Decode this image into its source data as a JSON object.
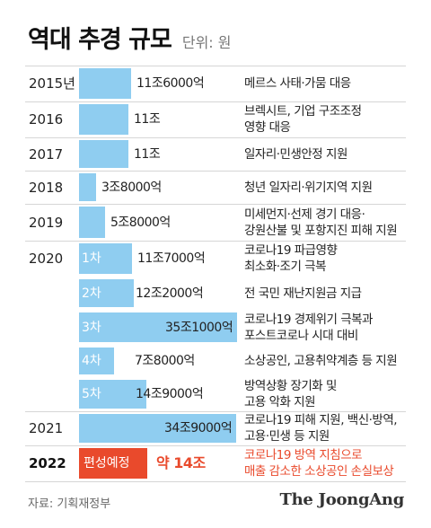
{
  "title": "역대 추경 규모",
  "unit": "단위: 원",
  "source": "자료: 기획재정부",
  "brand": "The JoongAng",
  "colors": {
    "bar": "#8fcdf0",
    "highlight": "#e94a2c",
    "divider": "#d6d6d6"
  },
  "chart_data": {
    "type": "bar",
    "orientation": "horizontal",
    "value_unit": "조원",
    "rows": [
      {
        "year": "2015년",
        "sub": "",
        "value": 11.6,
        "value_label": "11조6000억",
        "desc": [
          "메르스 사태·가뭄 대응"
        ]
      },
      {
        "year": "2016",
        "sub": "",
        "value": 11,
        "value_label": "11조",
        "desc": [
          "브렉시트, 기업 구조조정",
          "영향 대응"
        ]
      },
      {
        "year": "2017",
        "sub": "",
        "value": 11,
        "value_label": "11조",
        "desc": [
          "일자리·민생안정 지원"
        ]
      },
      {
        "year": "2018",
        "sub": "",
        "value": 3.8,
        "value_label": "3조8000억",
        "desc": [
          "청년 일자리·위기지역 지원"
        ]
      },
      {
        "year": "2019",
        "sub": "",
        "value": 5.8,
        "value_label": "5조8000억",
        "desc": [
          "미세먼지·선제 경기 대응·",
          "강원산불 및 포항지진 피해 지원"
        ]
      },
      {
        "year": "2020",
        "sub": "1차",
        "value": 11.7,
        "value_label": "11조7000억",
        "desc": [
          "코로나19 파급영향",
          "최소화·조기 극복"
        ]
      },
      {
        "year": "",
        "sub": "2차",
        "value": 12.2,
        "value_label": "12조2000억",
        "desc": [
          "전 국민 재난지원금 지급"
        ]
      },
      {
        "year": "",
        "sub": "3차",
        "value": 35.1,
        "value_label": "35조1000억",
        "desc": [
          "코로나19 경제위기 극복과",
          "포스트코로나 시대 대비"
        ]
      },
      {
        "year": "",
        "sub": "4차",
        "value": 7.8,
        "value_label": "7조8000억",
        "desc": [
          "소상공인, 고용취약계층 등 지원"
        ]
      },
      {
        "year": "",
        "sub": "5차",
        "value": 14.9,
        "value_label": "14조9000억",
        "desc": [
          "방역상황 장기화 및",
          "고용 악화 지원"
        ]
      },
      {
        "year": "2021",
        "sub": "",
        "value": 34.9,
        "value_label": "34조9000억",
        "desc": [
          "코로나19 피해 지원, 백신·방역,",
          "고용·민생 등 지원"
        ]
      },
      {
        "year": "2022",
        "sub": "편성예정",
        "value": 14,
        "value_label": "약 14조",
        "desc": [
          "코로나19 방역 지침으로",
          "매출 감소한 소상공인 손실보상"
        ],
        "highlight": true
      }
    ]
  }
}
